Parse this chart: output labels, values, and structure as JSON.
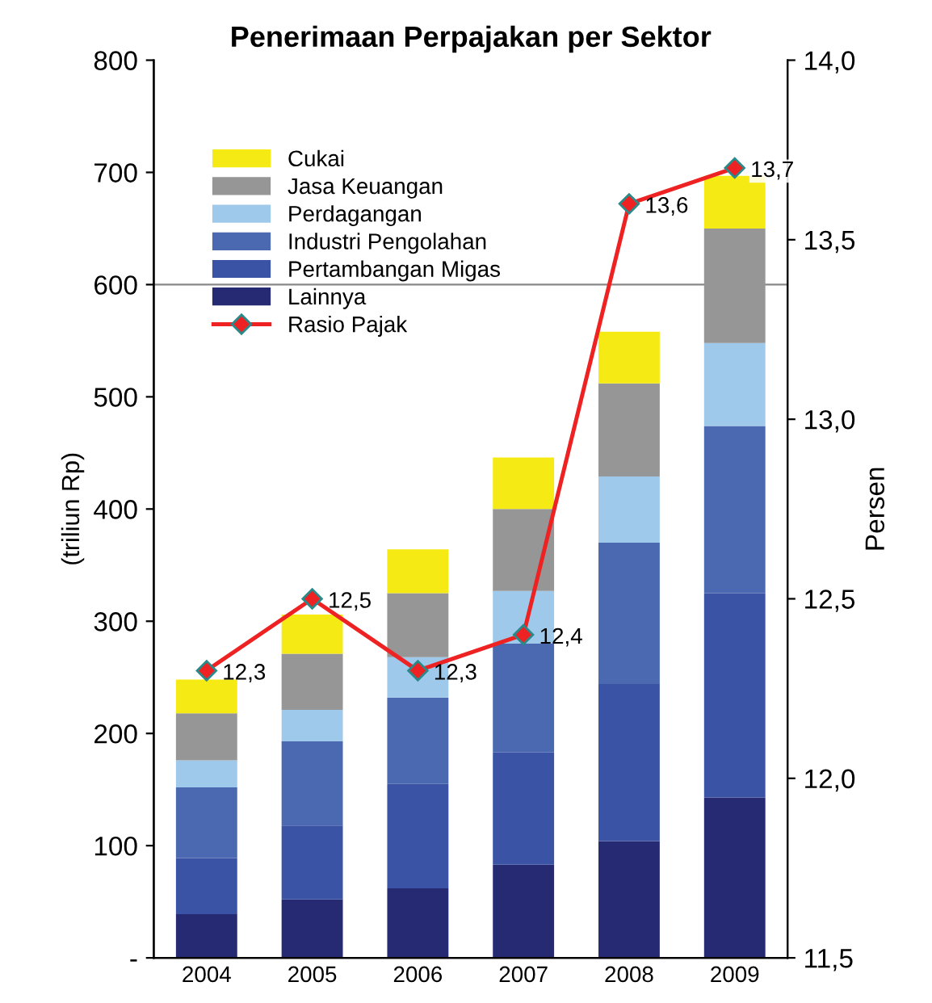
{
  "chart_data": {
    "type": "bar",
    "title": "Penerimaan Perpajakan per Sektor",
    "ylabel": "(triliun Rp)",
    "y2label": "Persen",
    "categories": [
      "2004",
      "2005",
      "2006",
      "2007",
      "2008",
      "2009"
    ],
    "stacked": true,
    "series": [
      {
        "name": "Lainnya",
        "color": "#262a72",
        "values": [
          39,
          52,
          62,
          83,
          104,
          143
        ]
      },
      {
        "name": "Pertambangan Migas",
        "color": "#3a53a4",
        "values": [
          50,
          66,
          93,
          100,
          140,
          182
        ]
      },
      {
        "name": "Industri Pengolahan",
        "color": "#4a69b0",
        "values": [
          63,
          75,
          77,
          97,
          126,
          149
        ]
      },
      {
        "name": "Perdagangan",
        "color": "#9fc9ea",
        "values": [
          24,
          28,
          36,
          47,
          59,
          74
        ]
      },
      {
        "name": "Jasa Keuangan",
        "color": "#969696",
        "values": [
          42,
          50,
          57,
          73,
          83,
          102
        ]
      },
      {
        "name": "Cukai",
        "color": "#f5ea14",
        "values": [
          30,
          35,
          39,
          46,
          46,
          47
        ]
      },
      {
        "name": "Rasio Pajak",
        "type": "line",
        "axis": "y2",
        "color": "#ee2222",
        "marker": "diamond",
        "line_style": "solid",
        "values": [
          12.3,
          12.5,
          12.3,
          12.4,
          13.6,
          13.7
        ],
        "value_labels": [
          "12,3",
          "12,5",
          "12,3",
          "12,4",
          "13,6",
          "13,7"
        ]
      }
    ],
    "ylim": [
      0,
      800
    ],
    "yticks": [
      {
        "value": 0,
        "label": "-"
      },
      100,
      200,
      300,
      400,
      500,
      600,
      700,
      800
    ],
    "y2lim": [
      11.5,
      14.0
    ],
    "y2ticks": [
      {
        "value": 11.5,
        "label": "11,5"
      },
      {
        "value": 12.0,
        "label": "12,0"
      },
      {
        "value": 12.5,
        "label": "12,5"
      },
      {
        "value": 13.0,
        "label": "13,0"
      },
      {
        "value": 13.5,
        "label": "13,5"
      },
      {
        "value": 14.0,
        "label": "14,0"
      }
    ],
    "ref_lines": [
      {
        "axis": "y",
        "value": 600,
        "color": "#888888",
        "line_style": "solid"
      }
    ],
    "grid": false,
    "legend": "top left"
  }
}
